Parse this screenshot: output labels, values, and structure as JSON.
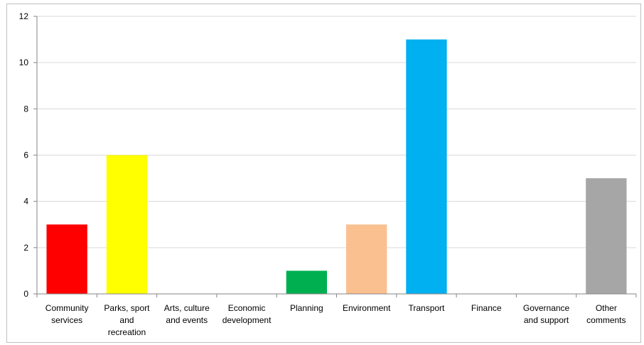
{
  "chart_data": {
    "type": "bar",
    "categories": [
      [
        "Community",
        "services"
      ],
      [
        "Parks, sport",
        "and",
        "recreation"
      ],
      [
        "Arts, culture",
        "and events"
      ],
      [
        "Economic",
        "development"
      ],
      [
        "Planning"
      ],
      [
        "Environment"
      ],
      [
        "Transport"
      ],
      [
        "Finance"
      ],
      [
        "Governance",
        "and support"
      ],
      [
        "Other",
        "comments"
      ]
    ],
    "values": [
      3,
      6,
      0,
      0,
      1,
      3,
      11,
      0,
      0,
      5
    ],
    "colors": [
      "#ff0000",
      "#ffff00",
      "#4f81bd",
      "#4f81bd",
      "#00b050",
      "#fac090",
      "#00b0f0",
      "#4f81bd",
      "#4f81bd",
      "#a6a6a6"
    ],
    "ylim": [
      0,
      12
    ],
    "yticks": [
      0,
      2,
      4,
      6,
      8,
      10,
      12
    ],
    "grid": true,
    "legend": "none",
    "title": "",
    "xlabel": "",
    "ylabel": ""
  }
}
